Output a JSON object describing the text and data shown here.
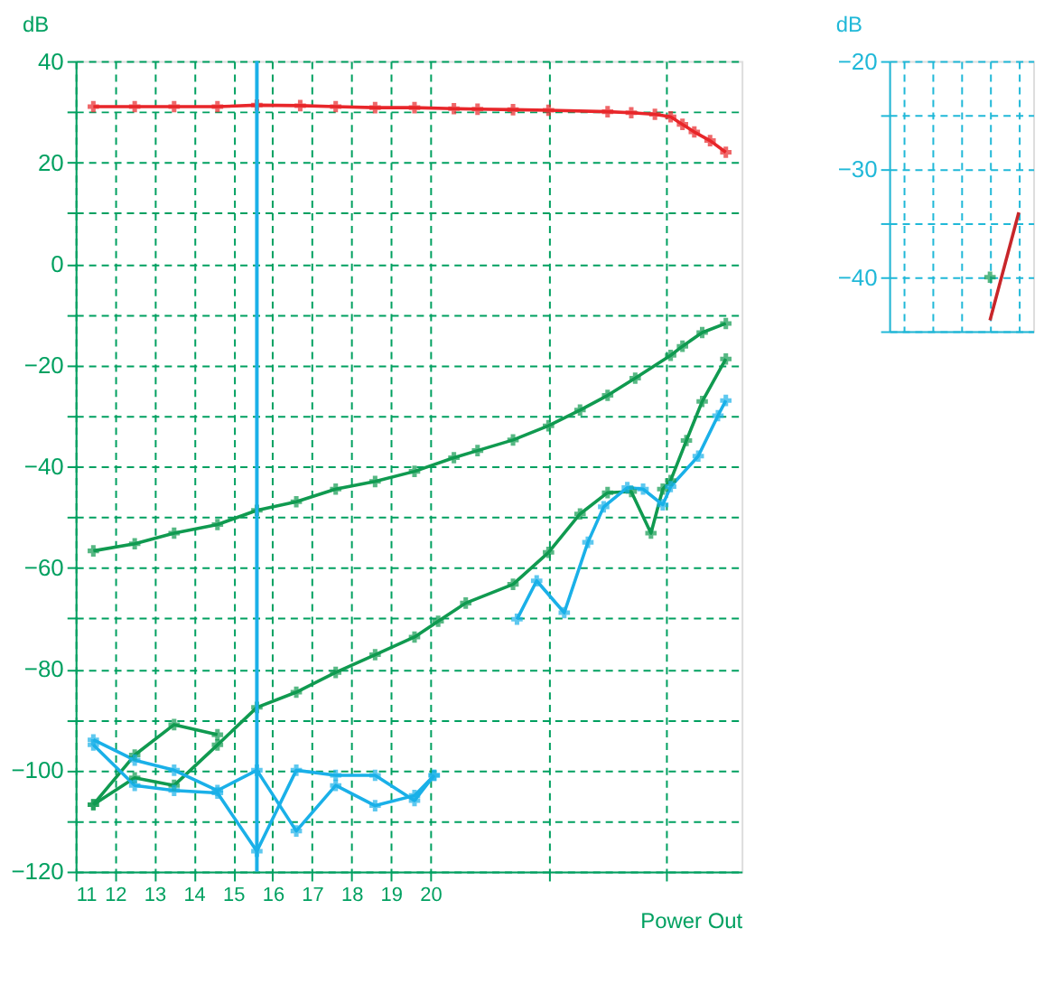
{
  "chart_data": [
    {
      "type": "line",
      "xlabel": "Power Out",
      "ylabel": "dB",
      "xlim": [
        11,
        27.9
      ],
      "ylim": [
        -120,
        40
      ],
      "xticks": [
        11,
        12,
        13,
        14,
        15,
        16,
        17,
        18,
        19,
        20,
        {
          "value": 23,
          "label": null
        },
        {
          "value": 26,
          "label": null
        }
      ],
      "yticks": [
        -120,
        {
          "value": -110,
          "label": null
        },
        -100,
        {
          "value": -90,
          "label": null
        },
        -80,
        {
          "value": -70,
          "label": null
        },
        -60,
        {
          "value": -50,
          "label": null
        },
        -40,
        {
          "value": -30,
          "label": null
        },
        -20,
        {
          "value": -10,
          "label": null
        },
        0,
        {
          "value": 10,
          "label": null
        },
        20,
        {
          "value": 30,
          "label": null
        },
        40
      ],
      "grid": true,
      "marker": "cross",
      "line_style": "solid",
      "ref_lines": [
        {
          "axis": "x",
          "value": 15.6,
          "color": "#1ab0e8"
        }
      ],
      "series": [
        {
          "color": "#e8262a",
          "x": [
            11.45,
            12.5,
            13.5,
            14.6,
            15.6,
            16.7,
            17.6,
            18.6,
            19.6,
            20.6,
            21.2,
            22.1,
            23.0,
            24.5,
            25.1,
            25.7,
            26.1,
            26.4,
            26.7,
            27.1,
            27.5
          ],
          "values": [
            31,
            31,
            31,
            31,
            31.3,
            31.2,
            31,
            30.8,
            30.8,
            30.6,
            30.5,
            30.4,
            30.3,
            30,
            29.8,
            29.5,
            29,
            27.5,
            26,
            24.3,
            22
          ]
        },
        {
          "color": "#109a50",
          "x": [
            11.45,
            12.5,
            13.5,
            14.6,
            15.6,
            16.6,
            17.6,
            18.6,
            19.6,
            20.6,
            21.2,
            22.1,
            23.0,
            23.8,
            24.5,
            25.2,
            26.1,
            26.4,
            26.9,
            27.5
          ],
          "values": [
            -56.7,
            -55.3,
            -53.2,
            -51.5,
            -48.7,
            -47,
            -44.5,
            -43,
            -41,
            -38.3,
            -36.9,
            -34.8,
            -32,
            -28.9,
            -26,
            -22.6,
            -18.1,
            -16.3,
            -13.6,
            -11.8
          ]
        },
        {
          "color": "#109a50",
          "x": [
            11.45,
            12.5,
            13.5,
            14.6,
            15.6,
            16.6,
            17.6,
            18.6,
            19.6,
            20.2,
            20.9,
            22.1,
            23.0,
            23.8,
            24.5,
            25.1,
            25.6,
            25.9,
            26.1,
            26.5,
            26.9,
            27.5
          ],
          "values": [
            -106.8,
            -101.5,
            -103,
            -95,
            -87.6,
            -84.6,
            -80.7,
            -77.2,
            -73.7,
            -70.6,
            -67,
            -63.3,
            -57,
            -49.4,
            -45.2,
            -45,
            -53.2,
            -44.5,
            -42.8,
            -34.9,
            -27.2,
            -18.8
          ]
        },
        {
          "color": "#109a50",
          "x": [
            11.45,
            12.5,
            13.5,
            14.6
          ],
          "values": [
            -106.8,
            -97,
            -91,
            -93
          ]
        },
        {
          "color": "#1ab0e8",
          "x": [
            11.45,
            12.5,
            13.5,
            14.6,
            15.6,
            16.6,
            17.6,
            18.6,
            19.6,
            20.1,
            21.2,
            22.2,
            22.7,
            23.4,
            24.0,
            24.4,
            25.0,
            25.4,
            25.9,
            26.1,
            26.8,
            27.3,
            27.5
          ],
          "values": [
            -94,
            -98,
            -100,
            -104,
            -100,
            -112,
            -103,
            -107,
            -105,
            -101,
            null,
            -70.2,
            -62.6,
            -68.9,
            -55,
            -48,
            -44.2,
            -44.5,
            -47.6,
            -44,
            -38,
            -30,
            -27
          ]
        },
        {
          "color": "#1ab0e8",
          "x": [
            11.45,
            12.5,
            13.5,
            14.6,
            15.6,
            16.6,
            17.6,
            18.6,
            19.6,
            20.1
          ],
          "values": [
            -95,
            -103,
            -104,
            -104.5,
            -116,
            -100,
            -101,
            -101,
            -106,
            -101
          ]
        }
      ]
    },
    {
      "type": "line",
      "ylabel": "dB",
      "ylim": [
        -45,
        -20
      ],
      "yticks": [
        {
          "value": -45,
          "label": null
        },
        -40,
        {
          "value": -35,
          "label": null
        },
        -30,
        {
          "value": -25,
          "label": null
        },
        -20
      ],
      "categories": [
        null,
        null,
        null,
        null,
        null
      ],
      "tick_labels": "y",
      "grid": true,
      "series": [
        {
          "color": "#c8262a",
          "values": [
            null,
            null,
            null,
            -44,
            -34
          ]
        },
        {
          "type": "scatter",
          "color": "#109a50",
          "marker": "cross",
          "values": [
            null,
            null,
            null,
            -40,
            null
          ]
        }
      ]
    }
  ]
}
